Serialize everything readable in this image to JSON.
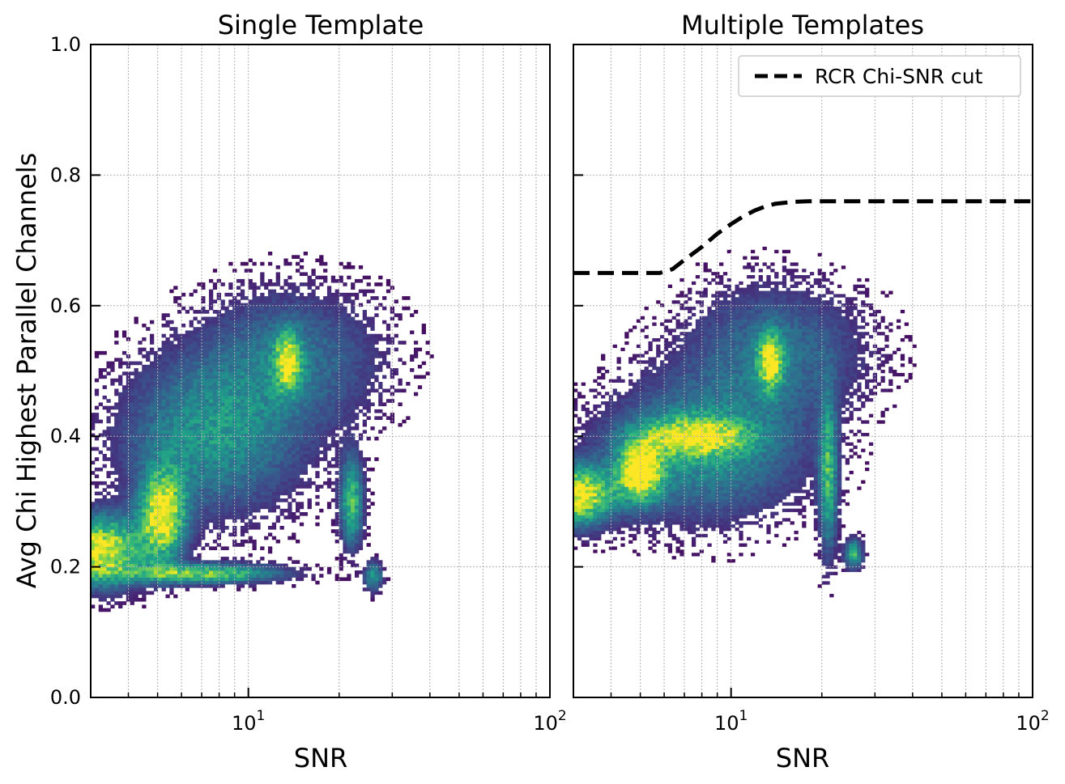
{
  "chart_data": [
    {
      "type": "heatmap",
      "title": "Single Template",
      "xlabel": "SNR",
      "ylabel": "Avg Chi Highest Parallel Channels",
      "x_scale": "log",
      "xlim": [
        3,
        100
      ],
      "ylim": [
        0.0,
        1.0
      ],
      "x_major_ticks": [
        {
          "value": 10,
          "base": "10",
          "exp": "1"
        },
        {
          "value": 100,
          "base": "10",
          "exp": "2"
        }
      ],
      "y_ticks": [
        {
          "value": 0.0,
          "label": "0.0"
        },
        {
          "value": 0.2,
          "label": "0.2"
        },
        {
          "value": 0.4,
          "label": "0.4"
        },
        {
          "value": 0.6,
          "label": "0.6"
        },
        {
          "value": 0.8,
          "label": "0.8"
        },
        {
          "value": 1.0,
          "label": "1.0"
        }
      ],
      "grid": true,
      "colormap": "viridis",
      "density_blobs": [
        {
          "snr": 3.2,
          "chi": 0.225,
          "sx": 0.1,
          "sy": 0.035,
          "w": 1.0
        },
        {
          "snr": 5.2,
          "chi": 0.28,
          "sx": 0.05,
          "sy": 0.045,
          "w": 1.0
        },
        {
          "snr": 7.0,
          "chi": 0.19,
          "sx": 0.17,
          "sy": 0.01,
          "w": 0.75
        },
        {
          "snr": 13.5,
          "chi": 0.515,
          "sx": 0.03,
          "sy": 0.03,
          "w": 0.75
        },
        {
          "snr": 22.0,
          "chi": 0.3,
          "sx": 0.025,
          "sy": 0.045,
          "w": 0.65
        },
        {
          "snr": 26.0,
          "chi": 0.185,
          "sx": 0.02,
          "sy": 0.015,
          "w": 0.5
        },
        {
          "snr": 7.5,
          "chi": 0.4,
          "sx": 0.2,
          "sy": 0.08,
          "w": 0.45
        },
        {
          "snr": 14.0,
          "chi": 0.52,
          "sx": 0.2,
          "sy": 0.07,
          "w": 0.3
        }
      ],
      "scatter_region": {
        "snr_min": 3.0,
        "snr_max": 45.0,
        "chi_min": 0.1,
        "chi_max": 0.73
      },
      "legend": null
    },
    {
      "type": "heatmap",
      "title": "Multiple Templates",
      "xlabel": "SNR",
      "ylabel": "",
      "x_scale": "log",
      "xlim": [
        3,
        100
      ],
      "ylim": [
        0.0,
        1.0
      ],
      "x_major_ticks": [
        {
          "value": 10,
          "base": "10",
          "exp": "1"
        },
        {
          "value": 100,
          "base": "10",
          "exp": "2"
        }
      ],
      "y_ticks": [
        {
          "value": 0.0,
          "label": ""
        },
        {
          "value": 0.2,
          "label": ""
        },
        {
          "value": 0.4,
          "label": ""
        },
        {
          "value": 0.6,
          "label": ""
        },
        {
          "value": 0.8,
          "label": ""
        },
        {
          "value": 1.0,
          "label": ""
        }
      ],
      "grid": true,
      "colormap": "viridis",
      "density_blobs": [
        {
          "snr": 3.1,
          "chi": 0.31,
          "sx": 0.08,
          "sy": 0.03,
          "w": 1.0
        },
        {
          "snr": 5.0,
          "chi": 0.345,
          "sx": 0.05,
          "sy": 0.03,
          "w": 1.0
        },
        {
          "snr": 7.5,
          "chi": 0.4,
          "sx": 0.12,
          "sy": 0.02,
          "w": 0.7
        },
        {
          "snr": 13.5,
          "chi": 0.515,
          "sx": 0.03,
          "sy": 0.03,
          "w": 0.75
        },
        {
          "snr": 21.0,
          "chi": 0.34,
          "sx": 0.02,
          "sy": 0.08,
          "w": 0.6
        },
        {
          "snr": 25.5,
          "chi": 0.22,
          "sx": 0.02,
          "sy": 0.015,
          "w": 0.6
        },
        {
          "snr": 8.0,
          "chi": 0.38,
          "sx": 0.22,
          "sy": 0.07,
          "w": 0.45
        },
        {
          "snr": 14.0,
          "chi": 0.53,
          "sx": 0.2,
          "sy": 0.07,
          "w": 0.3
        }
      ],
      "scatter_region": {
        "snr_min": 3.0,
        "snr_max": 45.0,
        "chi_min": 0.12,
        "chi_max": 0.7
      },
      "cut_line": {
        "name": "RCR Chi-SNR cut",
        "style": "dashed",
        "color": "#000000",
        "snr": [
          3.0,
          4.0,
          5.0,
          5.8,
          6.4,
          7.0,
          8.0,
          9.0,
          10.0,
          11.0,
          12.0,
          13.0,
          14.0,
          16.0,
          18.0,
          20.0,
          30.0,
          50.0,
          100.0
        ],
        "chi": [
          0.65,
          0.65,
          0.65,
          0.65,
          0.656,
          0.67,
          0.69,
          0.71,
          0.725,
          0.737,
          0.746,
          0.752,
          0.756,
          0.759,
          0.76,
          0.76,
          0.76,
          0.76,
          0.76
        ]
      },
      "legend": {
        "position": "top-right",
        "entries": [
          "RCR Chi-SNR cut"
        ]
      }
    }
  ]
}
